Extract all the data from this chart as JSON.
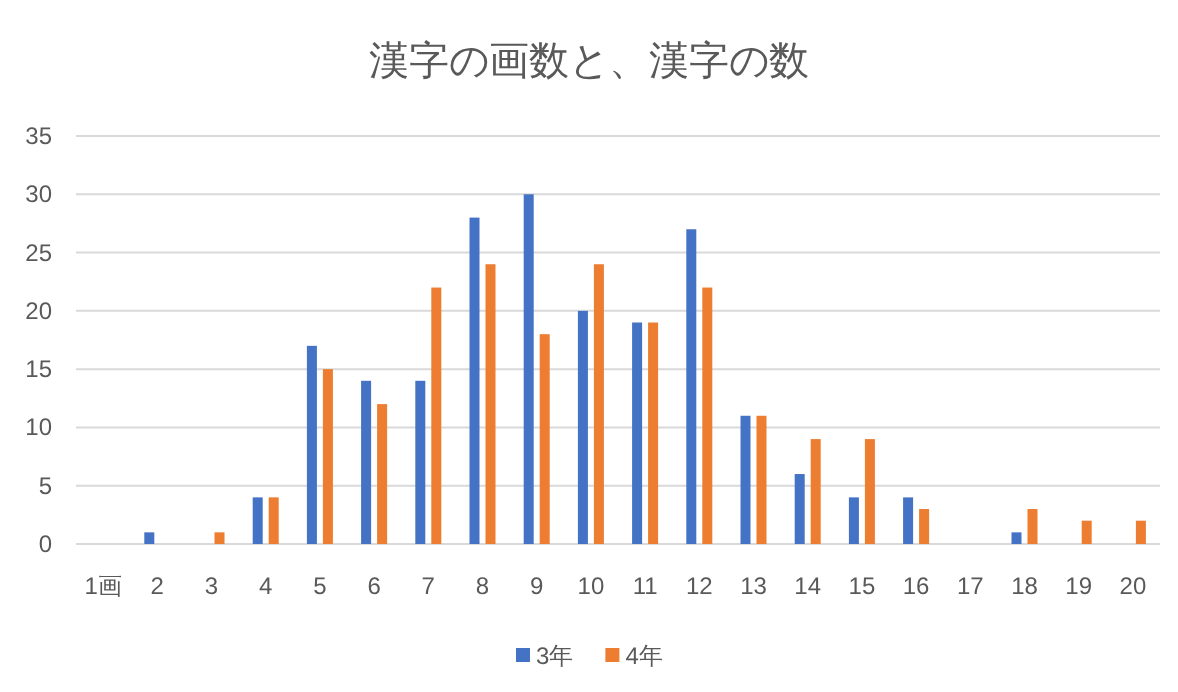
{
  "chart_data": {
    "type": "bar",
    "title": "漢字の画数と、漢字の数",
    "categories": [
      "1画",
      "2",
      "3",
      "4",
      "5",
      "6",
      "7",
      "8",
      "9",
      "10",
      "11",
      "12",
      "13",
      "14",
      "15",
      "16",
      "17",
      "18",
      "19",
      "20"
    ],
    "series": [
      {
        "name": "3年",
        "color": "#4472c4",
        "values": [
          0,
          1,
          0,
          4,
          17,
          14,
          14,
          28,
          30,
          20,
          19,
          27,
          11,
          6,
          4,
          4,
          0,
          1,
          0,
          0
        ]
      },
      {
        "name": "4年",
        "color": "#ed7d31",
        "values": [
          0,
          0,
          1,
          4,
          15,
          12,
          22,
          24,
          18,
          24,
          19,
          22,
          11,
          9,
          9,
          3,
          0,
          3,
          2,
          2
        ]
      }
    ],
    "ylim": [
      0,
      35
    ],
    "yticks": [
      0,
      5,
      10,
      15,
      20,
      25,
      30,
      35
    ],
    "grid": "y",
    "legend": "bottom"
  }
}
